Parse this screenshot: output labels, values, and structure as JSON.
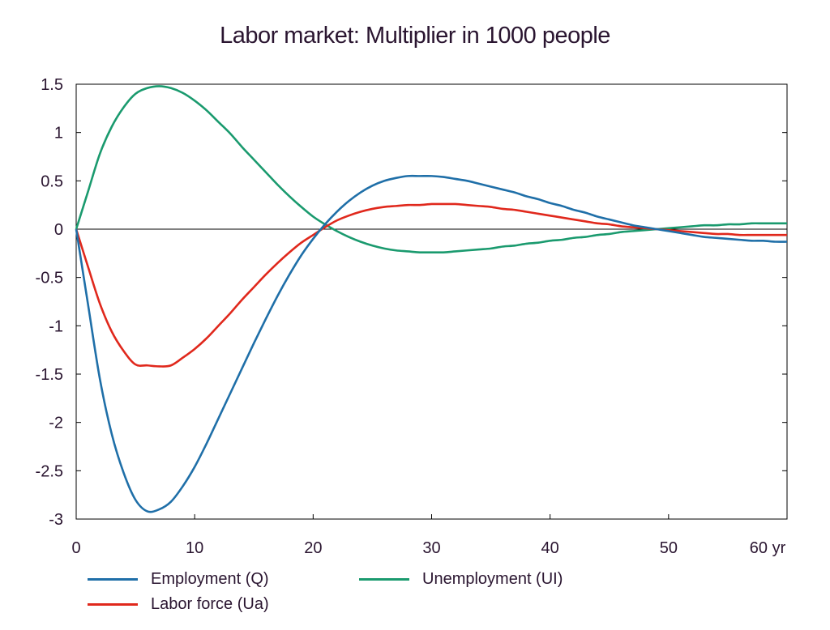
{
  "chart_data": {
    "type": "line",
    "title": "Labor market: Multiplier in 1000 people",
    "xlabel": "",
    "ylabel": "",
    "x_unit_label": "yr",
    "xlim": [
      0,
      60
    ],
    "ylim": [
      -3,
      1.5
    ],
    "x_ticks": [
      0,
      10,
      20,
      30,
      40,
      50,
      60
    ],
    "x_tick_labels": [
      "0",
      "10",
      "20",
      "30",
      "40",
      "50",
      "60 yr"
    ],
    "y_ticks": [
      1.5,
      1,
      0.5,
      0,
      -0.5,
      -1,
      -1.5,
      -2,
      -2.5,
      -3
    ],
    "y_tick_labels": [
      "1.5",
      "1",
      "0.5",
      "0",
      "-0.5",
      "-1",
      "-1.5",
      "-2",
      "-2.5",
      "-3"
    ],
    "grid": false,
    "legend_position": "bottom",
    "x": [
      0,
      1,
      2,
      3,
      4,
      5,
      6,
      7,
      8,
      9,
      10,
      11,
      12,
      13,
      14,
      15,
      16,
      17,
      18,
      19,
      20,
      21,
      22,
      23,
      24,
      25,
      26,
      27,
      28,
      29,
      30,
      31,
      32,
      33,
      34,
      35,
      36,
      37,
      38,
      39,
      40,
      41,
      42,
      43,
      44,
      45,
      46,
      47,
      48,
      49,
      50,
      51,
      52,
      53,
      54,
      55,
      56,
      57,
      58,
      59,
      60
    ],
    "series": [
      {
        "name": "Employment (Q)",
        "color": "#1f6fa8",
        "values": [
          0,
          -0.78,
          -1.55,
          -2.12,
          -2.52,
          -2.8,
          -2.92,
          -2.9,
          -2.82,
          -2.66,
          -2.46,
          -2.22,
          -1.96,
          -1.7,
          -1.44,
          -1.18,
          -0.93,
          -0.69,
          -0.47,
          -0.27,
          -0.1,
          0.05,
          0.18,
          0.29,
          0.38,
          0.45,
          0.5,
          0.53,
          0.55,
          0.55,
          0.55,
          0.54,
          0.52,
          0.5,
          0.47,
          0.44,
          0.41,
          0.38,
          0.34,
          0.31,
          0.27,
          0.24,
          0.2,
          0.17,
          0.13,
          0.1,
          0.07,
          0.04,
          0.02,
          0.0,
          -0.02,
          -0.04,
          -0.06,
          -0.08,
          -0.09,
          -0.1,
          -0.11,
          -0.12,
          -0.12,
          -0.13,
          -0.13
        ]
      },
      {
        "name": "Unemployment (UI)",
        "color": "#1a9a6e",
        "values": [
          0,
          0.39,
          0.78,
          1.06,
          1.26,
          1.4,
          1.46,
          1.48,
          1.46,
          1.41,
          1.33,
          1.23,
          1.11,
          0.99,
          0.85,
          0.72,
          0.59,
          0.46,
          0.34,
          0.23,
          0.13,
          0.05,
          -0.02,
          -0.08,
          -0.13,
          -0.17,
          -0.2,
          -0.22,
          -0.23,
          -0.24,
          -0.24,
          -0.24,
          -0.23,
          -0.22,
          -0.21,
          -0.2,
          -0.18,
          -0.17,
          -0.15,
          -0.14,
          -0.12,
          -0.11,
          -0.09,
          -0.08,
          -0.06,
          -0.05,
          -0.03,
          -0.02,
          -0.01,
          0.0,
          0.01,
          0.02,
          0.03,
          0.04,
          0.04,
          0.05,
          0.05,
          0.06,
          0.06,
          0.06,
          0.06
        ]
      },
      {
        "name": "Labor force (Ua)",
        "color": "#e0281c",
        "values": [
          0,
          -0.39,
          -0.77,
          -1.06,
          -1.26,
          -1.4,
          -1.41,
          -1.42,
          -1.41,
          -1.33,
          -1.24,
          -1.13,
          -1.0,
          -0.87,
          -0.73,
          -0.6,
          -0.47,
          -0.35,
          -0.24,
          -0.14,
          -0.06,
          0.02,
          0.09,
          0.14,
          0.18,
          0.21,
          0.23,
          0.24,
          0.25,
          0.25,
          0.26,
          0.26,
          0.26,
          0.25,
          0.24,
          0.23,
          0.21,
          0.2,
          0.18,
          0.16,
          0.14,
          0.12,
          0.1,
          0.08,
          0.06,
          0.05,
          0.03,
          0.02,
          0.01,
          0.0,
          -0.01,
          -0.02,
          -0.03,
          -0.04,
          -0.05,
          -0.05,
          -0.06,
          -0.06,
          -0.06,
          -0.06,
          -0.06
        ]
      }
    ]
  }
}
